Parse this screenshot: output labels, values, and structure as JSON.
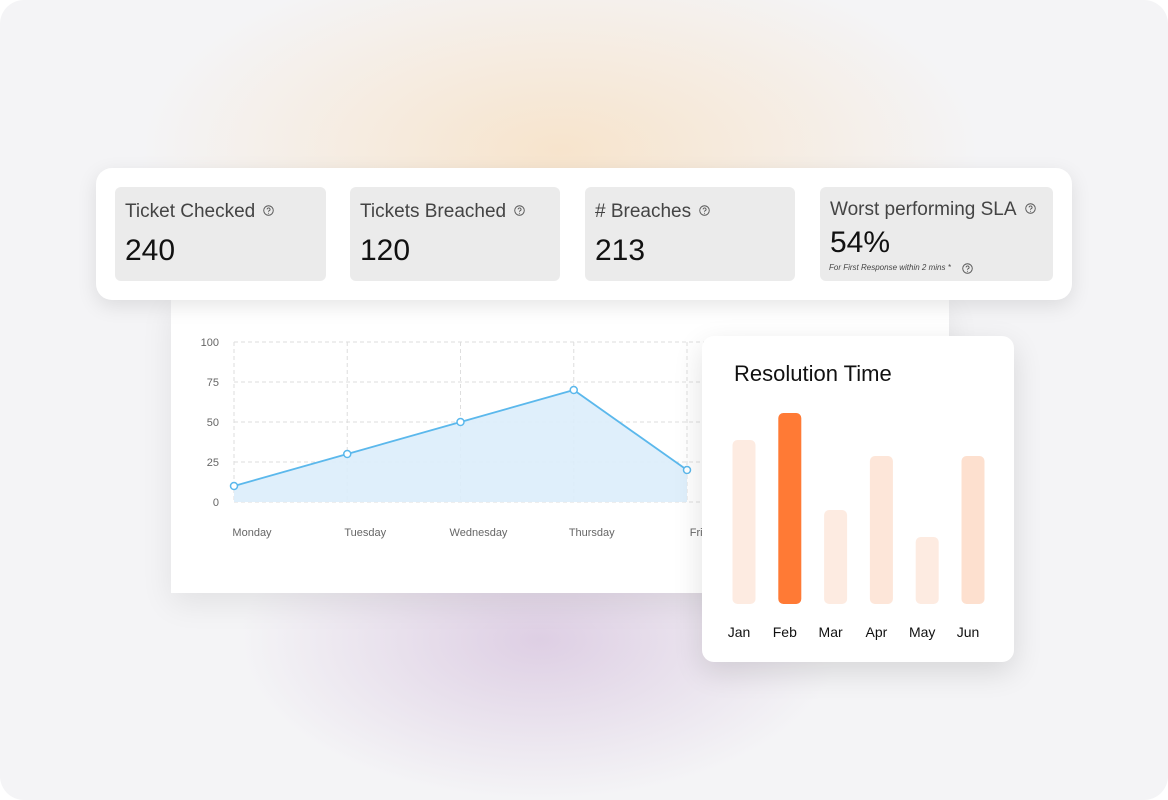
{
  "stats": [
    {
      "label": "Ticket Checked",
      "value": "240"
    },
    {
      "label": "Tickets Breached",
      "value": "120"
    },
    {
      "label": "# Breaches",
      "value": "213"
    },
    {
      "label": "Worst performing SLA",
      "value": "54%",
      "note": "For First Response within 2 mins *"
    }
  ],
  "line_chart": {
    "type": "line",
    "categories": [
      "Monday",
      "Tuesday",
      "Wednesday",
      "Thursday",
      "Friday"
    ],
    "values": [
      10,
      30,
      50,
      70,
      20
    ],
    "color": "#5bb8ec",
    "fill": "#dcedfb",
    "ylim": [
      0,
      100
    ],
    "yticks": [
      0,
      25,
      50,
      75,
      100
    ],
    "grid": true
  },
  "bar_chart": {
    "type": "bar",
    "title": "Resolution Time",
    "categories": [
      "Jan",
      "Feb",
      "Mar",
      "Apr",
      "May",
      "Jun"
    ],
    "values": [
      164,
      191,
      94,
      148,
      67,
      148
    ],
    "colors": [
      "#fdebe1",
      "#ff7a35",
      "#fdebe1",
      "#fde6d9",
      "#fdebe1",
      "#fde0cf"
    ],
    "ylim": [
      0,
      200
    ]
  }
}
